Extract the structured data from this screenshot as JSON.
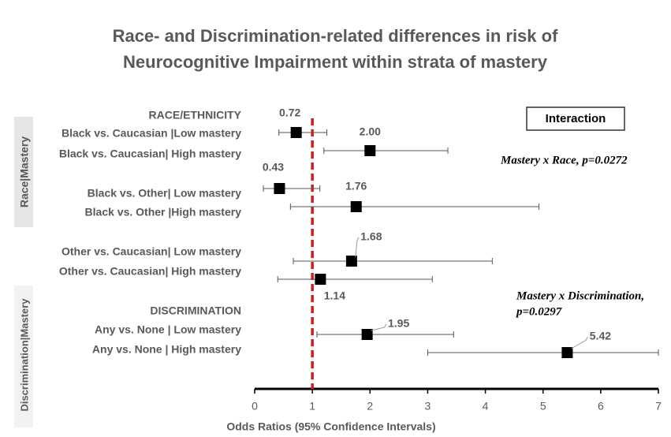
{
  "chart_data": {
    "type": "forest",
    "title": [
      "Race- and Discrimination-related differences in risk of",
      "Neurocognitive Impairment within strata of mastery"
    ],
    "x_label": "Odds Ratios (95% Confidence Intervals)",
    "group_labels": [
      "RACE/ETHNICITY",
      "DISCRIMINATION"
    ],
    "side_labels": [
      "Race|Mastery",
      "Discrimination|Mastery"
    ],
    "categories": [
      "Black  vs. Caucasian |Low mastery",
      "Black vs. Caucasian| High mastery",
      "Black vs. Other| Low mastery",
      "Black vs. Other |High mastery",
      "Other vs. Caucasian| Low mastery",
      "Other vs. Caucasian| High mastery",
      "Any vs. None | Low mastery",
      "Any vs. None | High mastery"
    ],
    "values": [
      0.72,
      2.0,
      0.43,
      1.76,
      1.68,
      1.14,
      1.95,
      5.42
    ],
    "value_labels": [
      "0.72",
      "2.00",
      "0.43",
      "1.76",
      "1.68",
      "1.14",
      "1.95",
      "5.42"
    ],
    "lower": [
      0.42,
      1.2,
      0.15,
      0.62,
      0.67,
      0.4,
      1.08,
      3.0
    ],
    "upper": [
      1.25,
      3.35,
      1.13,
      4.93,
      4.12,
      3.08,
      3.45,
      7.0
    ],
    "reference_line": 1,
    "reference_color": "#cc1f1f",
    "color": "#000000",
    "xlim": [
      0,
      7
    ],
    "xticks": [
      0,
      1,
      2,
      3,
      4,
      5,
      6,
      7
    ],
    "annotations": {
      "box": "Interaction",
      "race": "Mastery x Race, p=0.0272",
      "discrimination": [
        "Mastery x Discrimination,",
        "p=0.0297"
      ]
    }
  }
}
